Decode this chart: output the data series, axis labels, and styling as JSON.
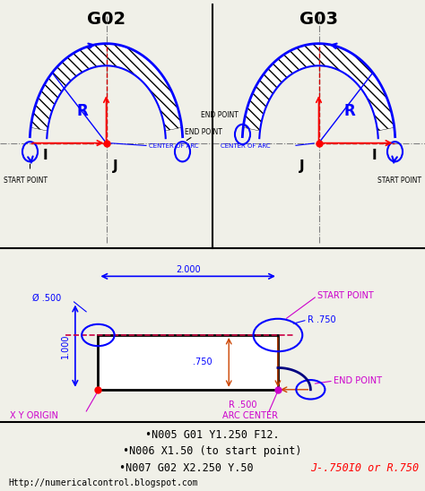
{
  "bg_color": "#f0f0f0",
  "top_bg": "#ffffff",
  "bottom_bg": "#ffffff",
  "title_g02": "G02",
  "title_g03": "G03",
  "text_color_blue": "#0000cc",
  "text_color_magenta": "#cc00cc",
  "text_color_red": "#cc0000",
  "text_color_black": "#000000",
  "line1": "•N005 G01 Y1.250 F12.",
  "line2": "•N006 X1.50 (to start point)",
  "line3_black": "•N007 G02 X2.250 Y.50 ",
  "line3_red": "J-.750I0 or R.750",
  "url": "Http://numericalcontrol.blogspot.com"
}
